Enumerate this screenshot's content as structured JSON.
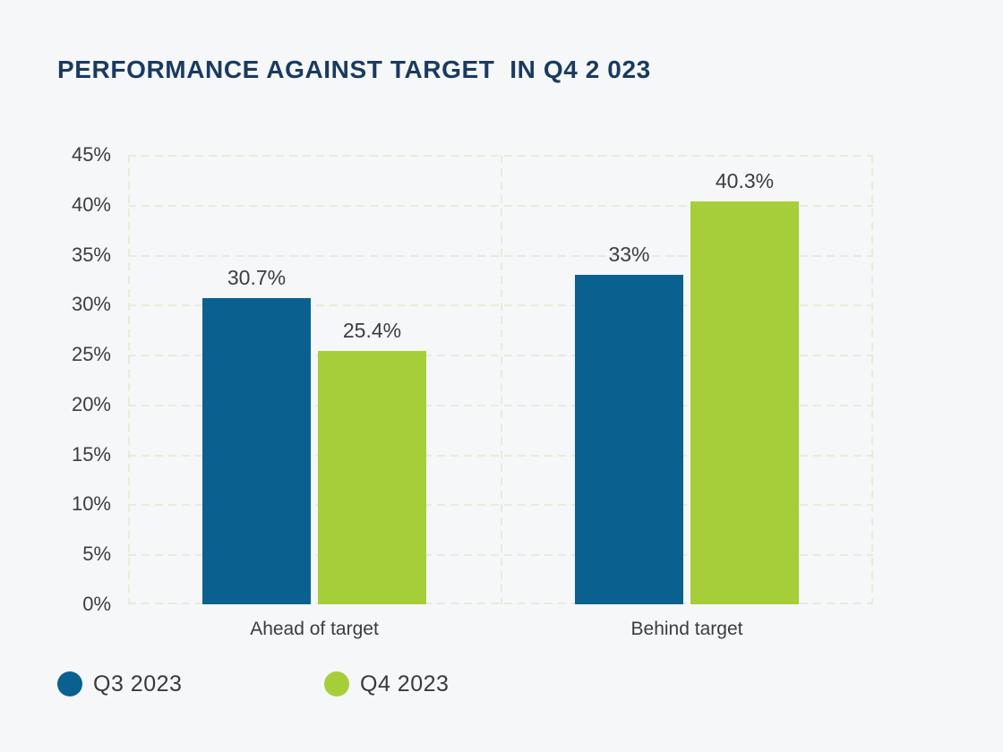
{
  "page": {
    "background_color": "#f5f7f9"
  },
  "title": {
    "text": "PERFORMANCE AGAINST TARGET  IN Q4 2 023",
    "color": "#1a3a5f"
  },
  "chart_data": {
    "type": "bar",
    "title": "PERFORMANCE AGAINST TARGET  IN Q4 2 023",
    "categories": [
      "Ahead of target",
      "Behind target"
    ],
    "series": [
      {
        "name": "Q3 2023",
        "color": "#0a6190",
        "values": [
          30.7,
          33.0
        ],
        "value_labels": [
          "30.7%",
          "33%"
        ]
      },
      {
        "name": "Q4 2023",
        "color": "#a6ce39",
        "values": [
          25.4,
          40.3
        ],
        "value_labels": [
          "25.4%",
          "40.3%"
        ]
      }
    ],
    "xlabel": "",
    "ylabel": "",
    "ylim": [
      0,
      45
    ],
    "y_ticks": [
      {
        "value": 45,
        "label": "45%"
      },
      {
        "value": 40,
        "label": "40%"
      },
      {
        "value": 35,
        "label": "35%"
      },
      {
        "value": 30,
        "label": "30%"
      },
      {
        "value": 25,
        "label": "25%"
      },
      {
        "value": 20,
        "label": "20%"
      },
      {
        "value": 15,
        "label": "15%"
      },
      {
        "value": 10,
        "label": "10%"
      },
      {
        "value": 5,
        "label": "5%"
      },
      {
        "value": 0,
        "label": "0%"
      }
    ],
    "grid": "dashed",
    "gridline_color": "#eaeadb",
    "label_color": "#3d3d3d",
    "legend_position": "bottom-left",
    "legend": [
      {
        "label": "Q3 2023",
        "color": "#0a6190"
      },
      {
        "label": "Q4 2023",
        "color": "#a6ce39"
      }
    ]
  }
}
